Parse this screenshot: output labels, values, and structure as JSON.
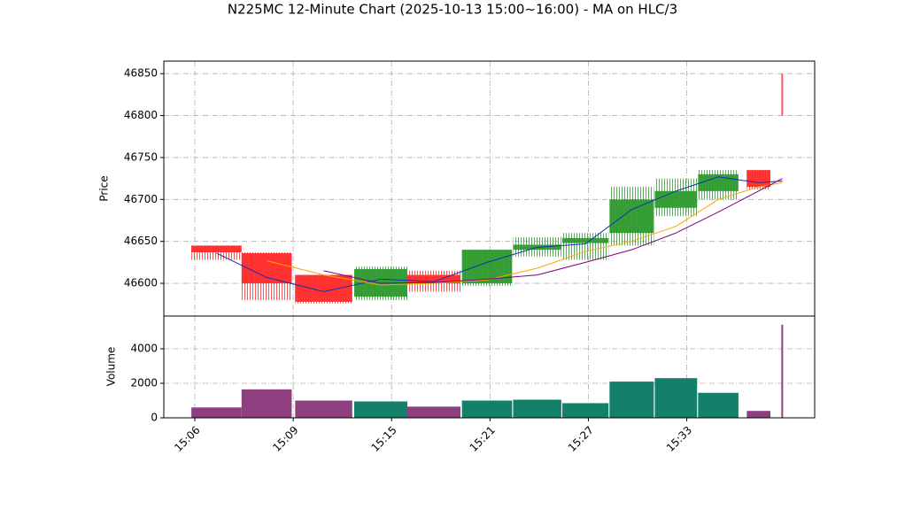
{
  "chart_data": {
    "type": "candlestick",
    "title": "N225MC 12-Minute Chart (2025-10-13 15:00~16:00) - MA on HLC/3",
    "ylabel": "Price",
    "volume_label": "Volume",
    "x": [
      0.22,
      0.73,
      1.31,
      1.89,
      2.43,
      2.97,
      3.48,
      3.97,
      4.44,
      4.89,
      5.32,
      5.73,
      5.97
    ],
    "open": [
      46645,
      46636,
      46610,
      46584,
      46610,
      46600,
      46640,
      46648,
      46660,
      46690,
      46710,
      46735,
      46850
    ],
    "high": [
      46645,
      46637,
      46610,
      46620,
      46615,
      46640,
      46655,
      46660,
      46715,
      46725,
      46735,
      46735,
      46850
    ],
    "low": [
      46628,
      46580,
      46576,
      46580,
      46590,
      46597,
      46632,
      46628,
      46645,
      46680,
      46700,
      46712,
      46800
    ],
    "close": [
      46637,
      46600,
      46578,
      46617,
      46600,
      46640,
      46646,
      46654,
      46700,
      46710,
      46730,
      46715,
      46800
    ],
    "volume": [
      600,
      1650,
      1000,
      950,
      650,
      1000,
      1050,
      850,
      2100,
      2300,
      1450,
      400,
      5400
    ],
    "up_color": "#2e9a2e",
    "down_color": "#ff2a2a",
    "up_volume_color": "#13806a",
    "down_volume_color": "#8e3f80",
    "lines": [
      {
        "color": "#1030b0",
        "values": [
          46636,
          46607,
          46590,
          46605,
          46602,
          46625,
          46643,
          46647,
          46688,
          46710,
          46727,
          46720,
          46722
        ]
      },
      {
        "color": "#ffa500",
        "values": [
          null,
          46627,
          46610,
          46598,
          46600,
          46604,
          46618,
          46638,
          46650,
          46668,
          46700,
          46715,
          46720
        ]
      },
      {
        "color": "#800080",
        "values": [
          null,
          null,
          46615,
          46600,
          46601,
          46605,
          46610,
          46625,
          46640,
          46660,
          46685,
          46710,
          46725
        ]
      }
    ],
    "xlim": [
      -0.315,
      6.3
    ],
    "xticks": [
      {
        "value": 0,
        "label": "15:06"
      },
      {
        "value": 1,
        "label": "15:09"
      },
      {
        "value": 2,
        "label": "15:15"
      },
      {
        "value": 3,
        "label": "15:21"
      },
      {
        "value": 4,
        "label": "15:27"
      },
      {
        "value": 5,
        "label": "15:33"
      }
    ],
    "ylim": [
      46561,
      46865
    ],
    "yticks": [
      46600,
      46650,
      46700,
      46750,
      46800,
      46850
    ],
    "volume_ylim": [
      0,
      5900
    ],
    "volume_yticks": [
      0,
      2000,
      4000
    ],
    "grid": true
  }
}
